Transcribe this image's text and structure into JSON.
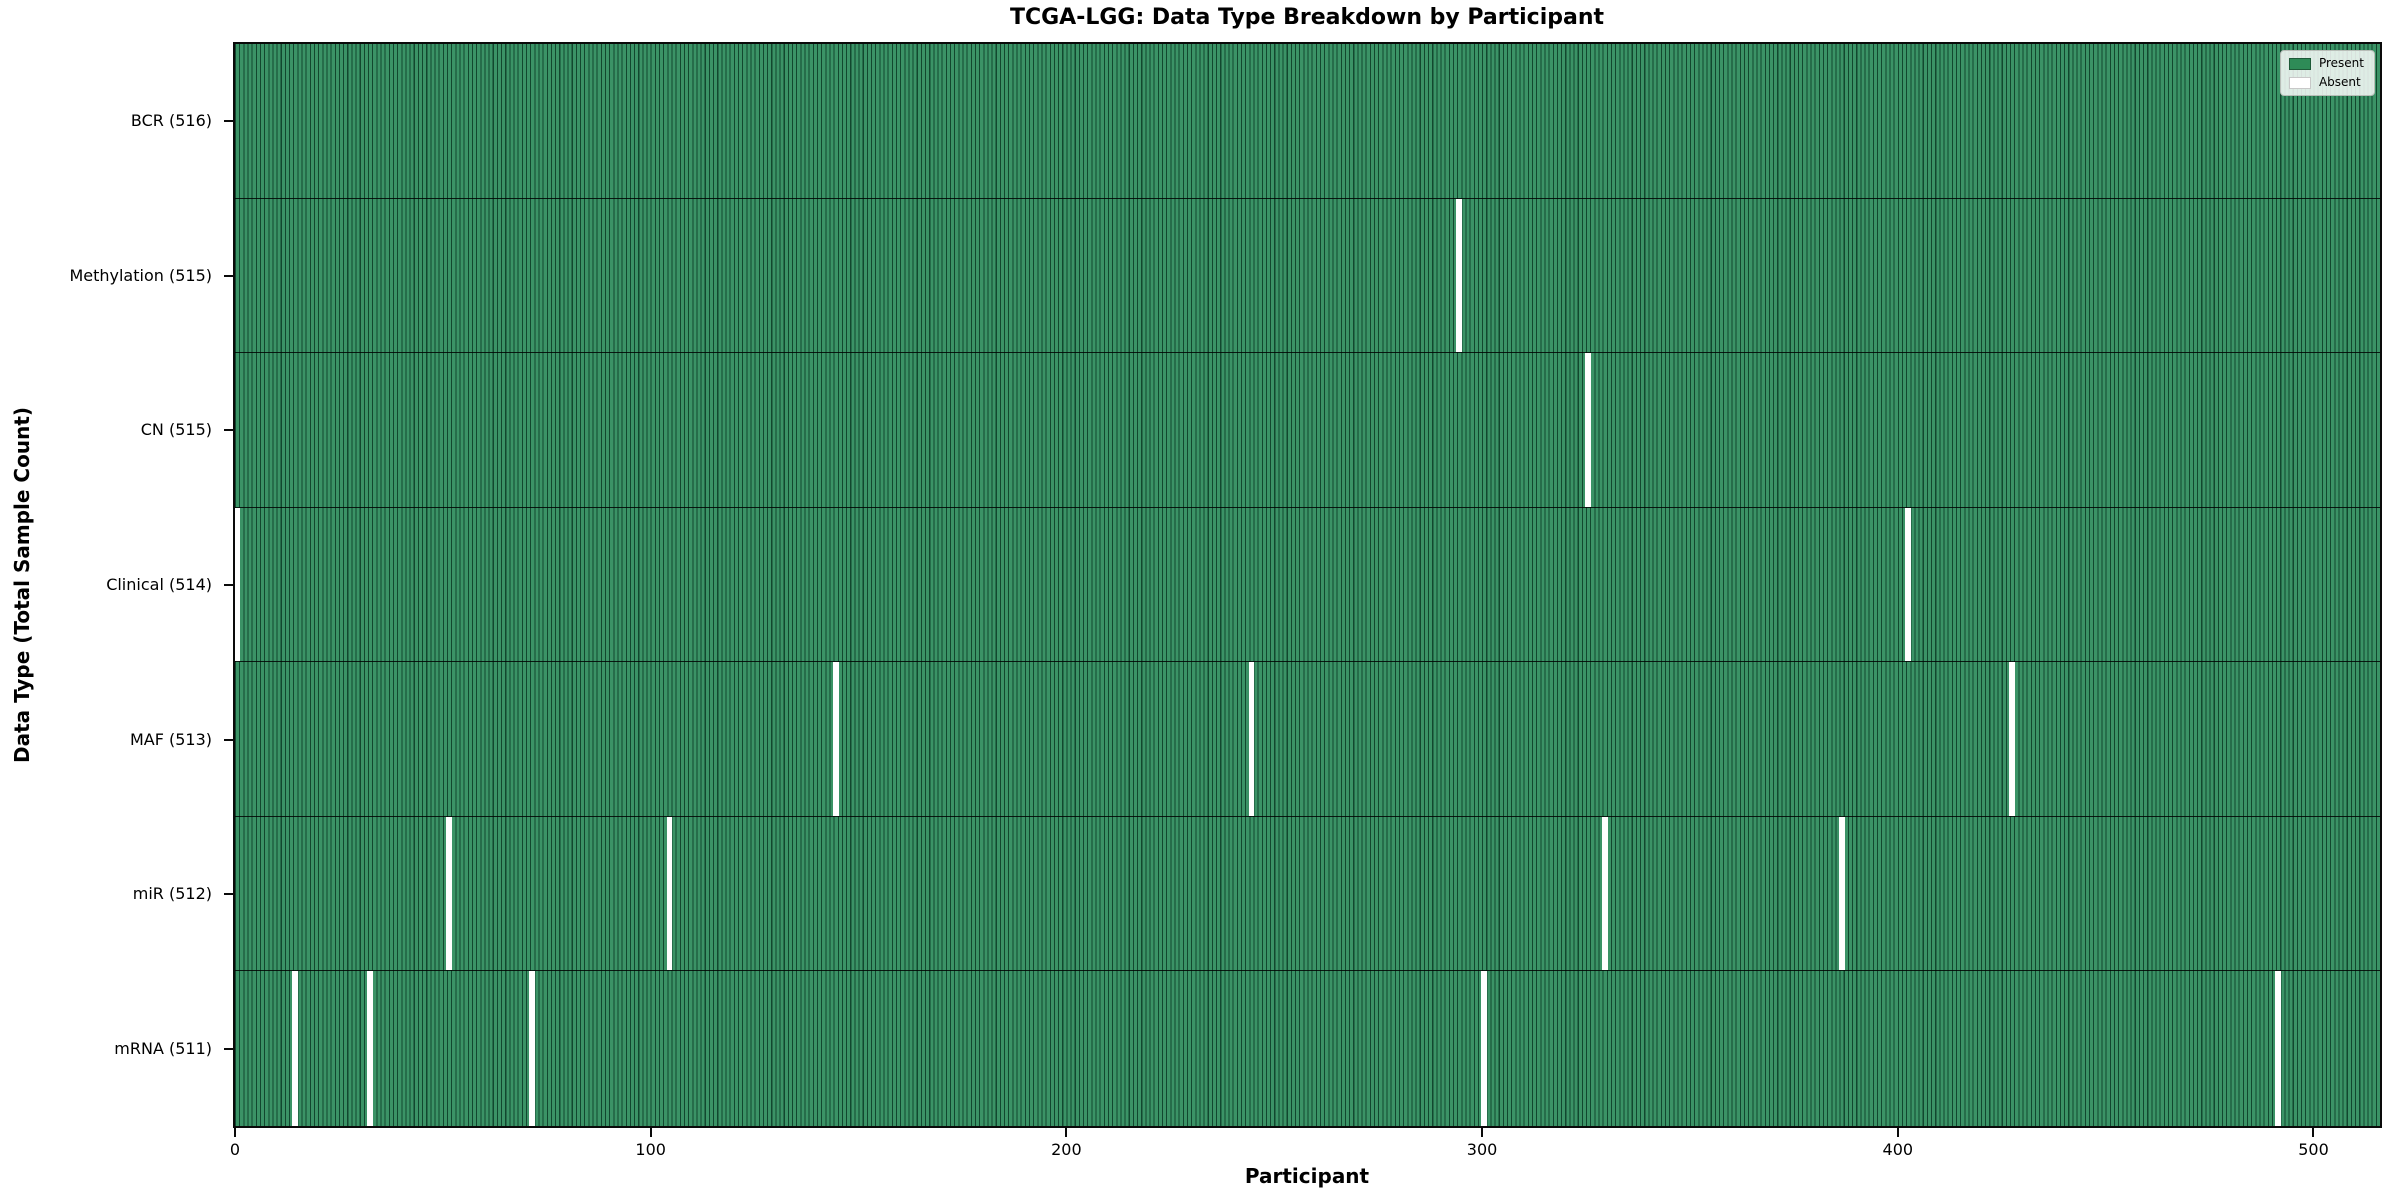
{
  "chart_data": {
    "type": "heatmap",
    "title": "TCGA-LGG: Data Type Breakdown by Participant",
    "xlabel": "Participant",
    "ylabel": "Data Type (Total Sample Count)",
    "n_participants": 516,
    "xlim": [
      0,
      516
    ],
    "x_ticks": [
      0,
      100,
      200,
      300,
      400,
      500
    ],
    "grid": false,
    "legend": {
      "position": "upper right",
      "entries": [
        {
          "label": "Present",
          "color": "#2e8b57"
        },
        {
          "label": "Absent",
          "color": "#ffffff"
        }
      ]
    },
    "rows": [
      {
        "data_type": "BCR",
        "label": "BCR (516)",
        "present_count": 516,
        "absent_participants": []
      },
      {
        "data_type": "Methylation",
        "label": "Methylation (515)",
        "present_count": 515,
        "absent_participants": [
          294
        ]
      },
      {
        "data_type": "CN",
        "label": "CN (515)",
        "present_count": 515,
        "absent_participants": [
          325
        ]
      },
      {
        "data_type": "Clinical",
        "label": "Clinical (514)",
        "present_count": 514,
        "absent_participants": [
          0,
          402
        ]
      },
      {
        "data_type": "MAF",
        "label": "MAF (513)",
        "present_count": 513,
        "absent_participants": [
          144,
          244,
          427
        ]
      },
      {
        "data_type": "miR",
        "label": "miR (512)",
        "present_count": 512,
        "absent_participants": [
          51,
          104,
          329,
          386
        ]
      },
      {
        "data_type": "mRNA",
        "label": "mRNA (511)",
        "present_count": 511,
        "absent_participants": [
          14,
          32,
          71,
          300,
          491
        ]
      }
    ],
    "colors": {
      "present_fill": "#3b9366",
      "bar_edge": "#0a3a25",
      "absent": "#ffffff",
      "row_divider": "#000000"
    }
  }
}
